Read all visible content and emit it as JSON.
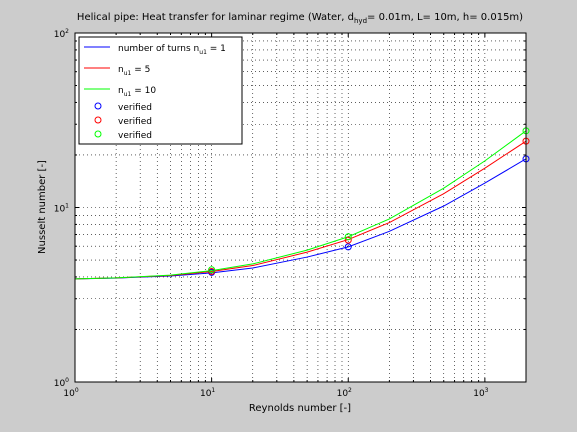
{
  "chart_data": {
    "type": "line",
    "title": {
      "prefix": "Helical pipe: Heat transfer for laminar regime (Water, d",
      "sub": "hyd",
      "suffix": "= 0.01m, L= 10m, h= 0.015m)"
    },
    "xlabel": "Reynolds number [-]",
    "ylabel": "Nusselt number [-]",
    "x_scale": "log",
    "y_scale": "log",
    "xlim": [
      1,
      2000
    ],
    "ylim": [
      1,
      100
    ],
    "grid": true,
    "legend_position": "top-left",
    "x_ticks": [
      {
        "value": 1,
        "base": "10",
        "exp": "0"
      },
      {
        "value": 10,
        "base": "10",
        "exp": "1"
      },
      {
        "value": 100,
        "base": "10",
        "exp": "2"
      },
      {
        "value": 1000,
        "base": "10",
        "exp": "3"
      }
    ],
    "y_ticks": [
      {
        "value": 1,
        "base": "10",
        "exp": "0"
      },
      {
        "value": 10,
        "base": "10",
        "exp": "1"
      },
      {
        "value": 100,
        "base": "10",
        "exp": "2"
      }
    ],
    "series": [
      {
        "label": {
          "prefix": "number of turns n",
          "sub": "u1",
          "suffix": " = 1"
        },
        "color": "#0000ff",
        "x": [
          1,
          2,
          5,
          10,
          20,
          50,
          100,
          200,
          500,
          1000,
          2000
        ],
        "y": [
          3.9,
          3.94,
          4.05,
          4.22,
          4.5,
          5.2,
          5.95,
          7.3,
          10.2,
          13.8,
          19.0
        ]
      },
      {
        "label": {
          "prefix": "n",
          "sub": "u1",
          "suffix": " = 5"
        },
        "color": "#ff0000",
        "x": [
          1,
          2,
          5,
          10,
          20,
          50,
          100,
          200,
          500,
          1000,
          2000
        ],
        "y": [
          3.9,
          3.95,
          4.08,
          4.3,
          4.65,
          5.55,
          6.55,
          8.2,
          12.0,
          16.8,
          24.0
        ]
      },
      {
        "label": {
          "prefix": "n",
          "sub": "u1",
          "suffix": " = 10"
        },
        "color": "#00ff00",
        "x": [
          1,
          2,
          5,
          10,
          20,
          50,
          100,
          200,
          500,
          1000,
          2000
        ],
        "y": [
          3.9,
          3.95,
          4.1,
          4.35,
          4.75,
          5.7,
          6.8,
          8.6,
          12.9,
          18.5,
          27.5
        ]
      }
    ],
    "verified": [
      {
        "label": "verified",
        "color": "#0000ff",
        "x": [
          10,
          100,
          2000
        ],
        "y": [
          4.25,
          5.95,
          19.0
        ]
      },
      {
        "label": "verified",
        "color": "#ff0000",
        "x": [
          10,
          100,
          2000
        ],
        "y": [
          4.3,
          6.5,
          24.0
        ]
      },
      {
        "label": "verified",
        "color": "#00ff00",
        "x": [
          10,
          100,
          2000
        ],
        "y": [
          4.4,
          6.8,
          27.5
        ]
      }
    ]
  }
}
